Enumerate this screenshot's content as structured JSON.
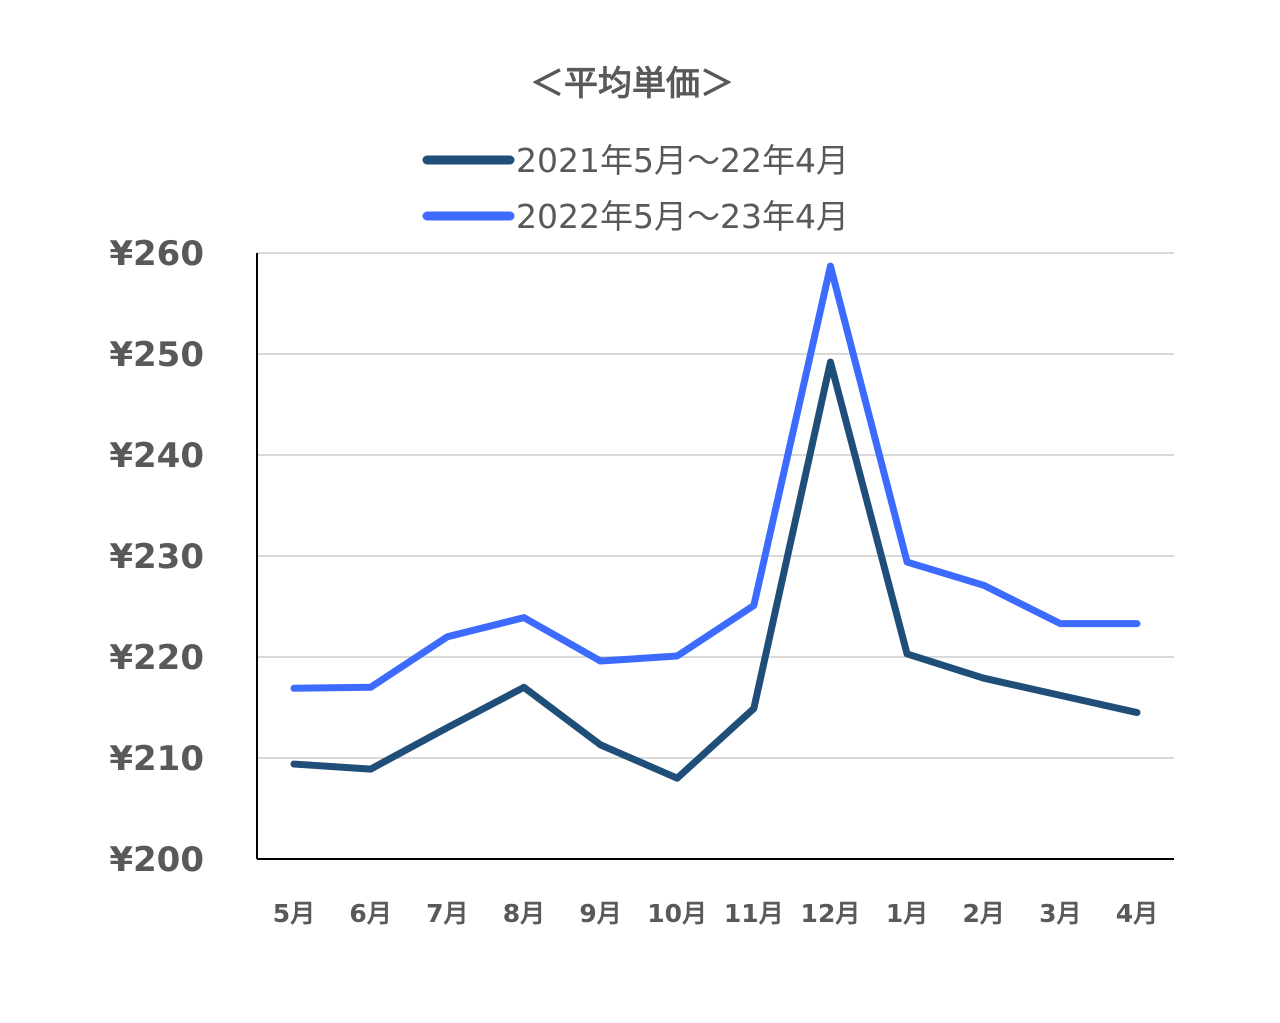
{
  "chart_data": {
    "type": "line",
    "title": "＜平均単価＞",
    "xlabel": "",
    "ylabel": "",
    "categories": [
      "5月",
      "6月",
      "7月",
      "8月",
      "9月",
      "10月",
      "11月",
      "12月",
      "1月",
      "2月",
      "3月",
      "4月"
    ],
    "ylim": [
      200,
      260
    ],
    "yticks": [
      200,
      210,
      220,
      230,
      240,
      250,
      260
    ],
    "ytick_labels": [
      "¥200",
      "¥210",
      "¥220",
      "¥230",
      "¥240",
      "¥250",
      "¥260"
    ],
    "grid": true,
    "legend_position": "top-center",
    "series": [
      {
        "name": "2021年5月～22年4月",
        "color": "#1f4e79",
        "values": [
          209.4,
          208.9,
          213.0,
          217.0,
          211.3,
          208.0,
          214.9,
          249.2,
          220.3,
          217.9,
          216.2,
          214.5
        ]
      },
      {
        "name": "2022年5月～23年4月",
        "color": "#3d6bff",
        "values": [
          216.9,
          217.0,
          222.0,
          223.9,
          219.6,
          220.1,
          225.1,
          258.7,
          229.4,
          227.1,
          223.3,
          223.3
        ]
      }
    ]
  }
}
